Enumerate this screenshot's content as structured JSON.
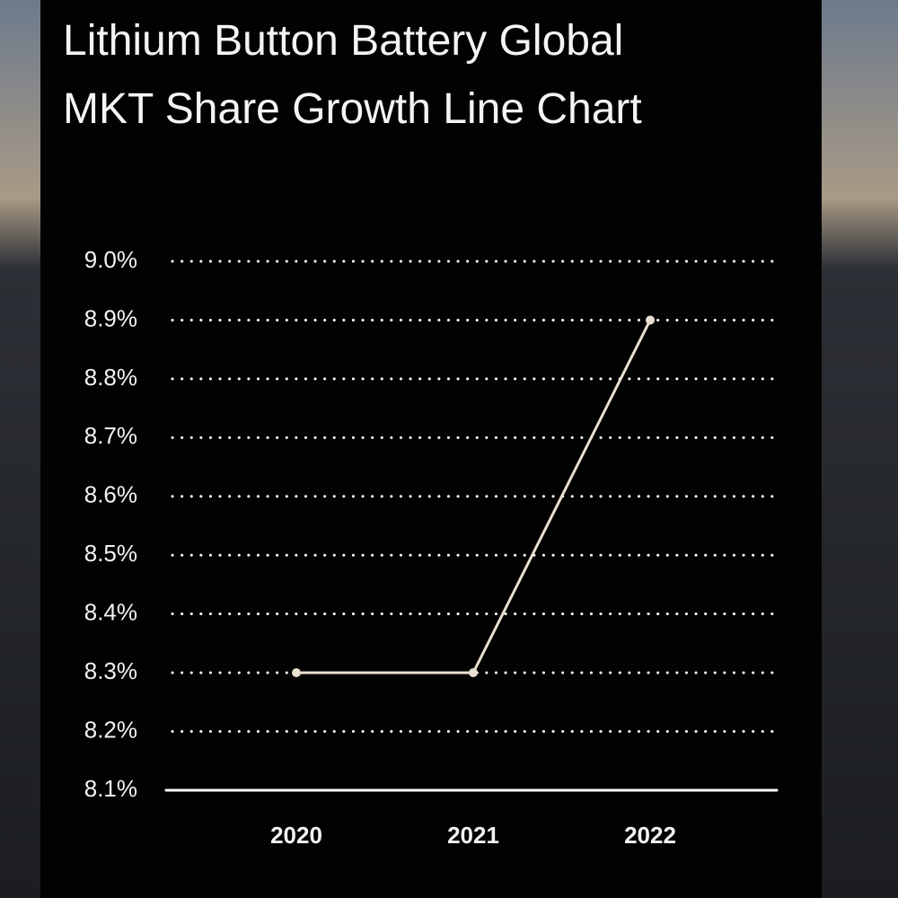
{
  "chart_data": {
    "type": "line",
    "title": "Lithium Button Battery Global MKT Share Growth Line Chart",
    "categories": [
      "2020",
      "2021",
      "2022"
    ],
    "values": [
      8.3,
      8.3,
      8.9
    ],
    "color": "#e9dfd0",
    "ylim": [
      8.1,
      9.0
    ],
    "yticks": [
      {
        "value": 8.1,
        "label": "8.1%"
      },
      {
        "value": 8.2,
        "label": "8.2%"
      },
      {
        "value": 8.3,
        "label": "8.3%"
      },
      {
        "value": 8.4,
        "label": "8.4%"
      },
      {
        "value": 8.5,
        "label": "8.5%"
      },
      {
        "value": 8.6,
        "label": "8.6%"
      },
      {
        "value": 8.7,
        "label": "8.7%"
      },
      {
        "value": 8.8,
        "label": "8.8%"
      },
      {
        "value": 8.9,
        "label": "8.9%"
      },
      {
        "value": 9.0,
        "label": "9.0%"
      }
    ],
    "grid": true
  }
}
